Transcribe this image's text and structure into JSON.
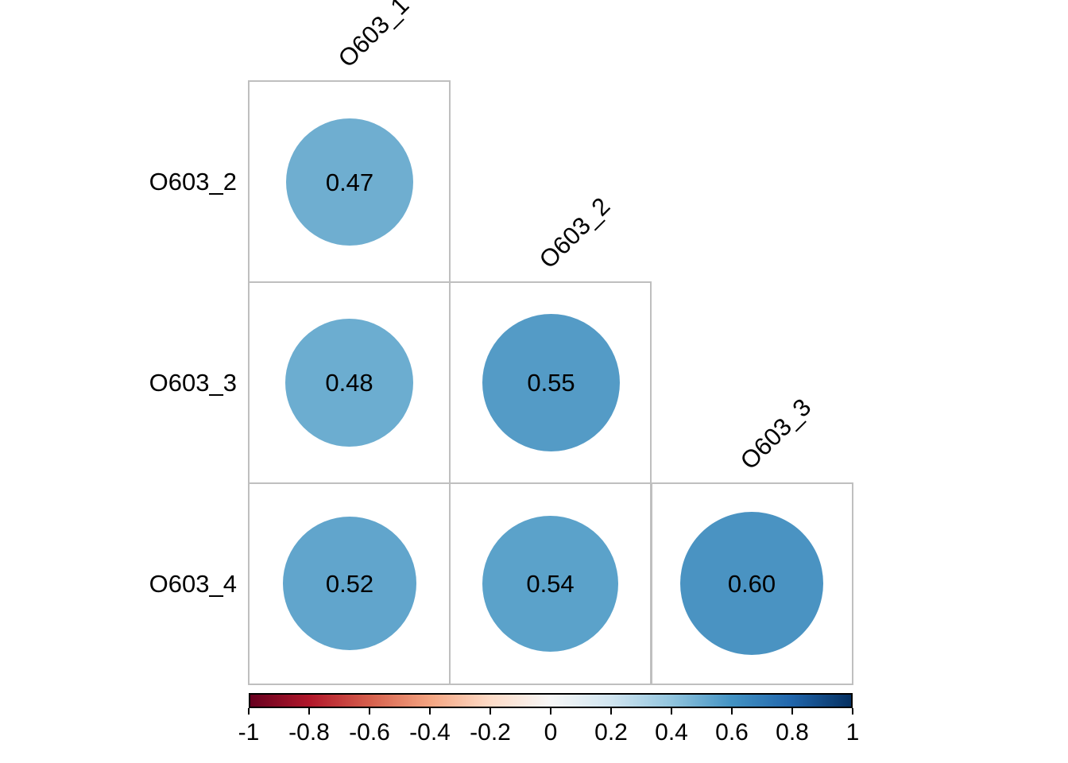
{
  "chart_data": {
    "type": "heatmap",
    "subtype": "correlation-matrix-lower-triangle",
    "title": "",
    "variables": [
      "O603_1",
      "O603_2",
      "O603_3",
      "O603_4"
    ],
    "col_labels": [
      "O603_1",
      "O603_2",
      "O603_3"
    ],
    "row_labels": [
      "O603_2",
      "O603_3",
      "O603_4"
    ],
    "cells": [
      {
        "row": "O603_2",
        "col": "O603_1",
        "row_index": 0,
        "col_index": 0,
        "value": 0.47,
        "label": "0.47",
        "color": "#6FAED0"
      },
      {
        "row": "O603_3",
        "col": "O603_1",
        "row_index": 1,
        "col_index": 0,
        "value": 0.48,
        "label": "0.48",
        "color": "#6CADD0"
      },
      {
        "row": "O603_3",
        "col": "O603_2",
        "row_index": 1,
        "col_index": 1,
        "value": 0.55,
        "label": "0.55",
        "color": "#549BC6"
      },
      {
        "row": "O603_4",
        "col": "O603_1",
        "row_index": 2,
        "col_index": 0,
        "value": 0.52,
        "label": "0.52",
        "color": "#61A5CC"
      },
      {
        "row": "O603_4",
        "col": "O603_2",
        "row_index": 2,
        "col_index": 1,
        "value": 0.54,
        "label": "0.54",
        "color": "#5BA2CA"
      },
      {
        "row": "O603_4",
        "col": "O603_3",
        "row_index": 2,
        "col_index": 2,
        "value": 0.6,
        "label": "0.60",
        "color": "#4A93C2"
      }
    ],
    "encoding": "circle area and color proportional to correlation",
    "colorbar": {
      "position": "bottom",
      "min": -1,
      "max": 1,
      "tick_labels": [
        "-1",
        "-0.8",
        "-0.6",
        "-0.4",
        "-0.2",
        "0",
        "0.2",
        "0.4",
        "0.6",
        "0.8",
        "1"
      ],
      "gradient_stops": [
        "#67001F",
        "#B2182B",
        "#D6604D",
        "#F4A582",
        "#FDDBC7",
        "#F7F7F7",
        "#D1E5F0",
        "#92C5DE",
        "#4393C3",
        "#2166AC",
        "#053061"
      ]
    },
    "grid_color": "#BFBFBF",
    "background": "#FFFFFF"
  }
}
